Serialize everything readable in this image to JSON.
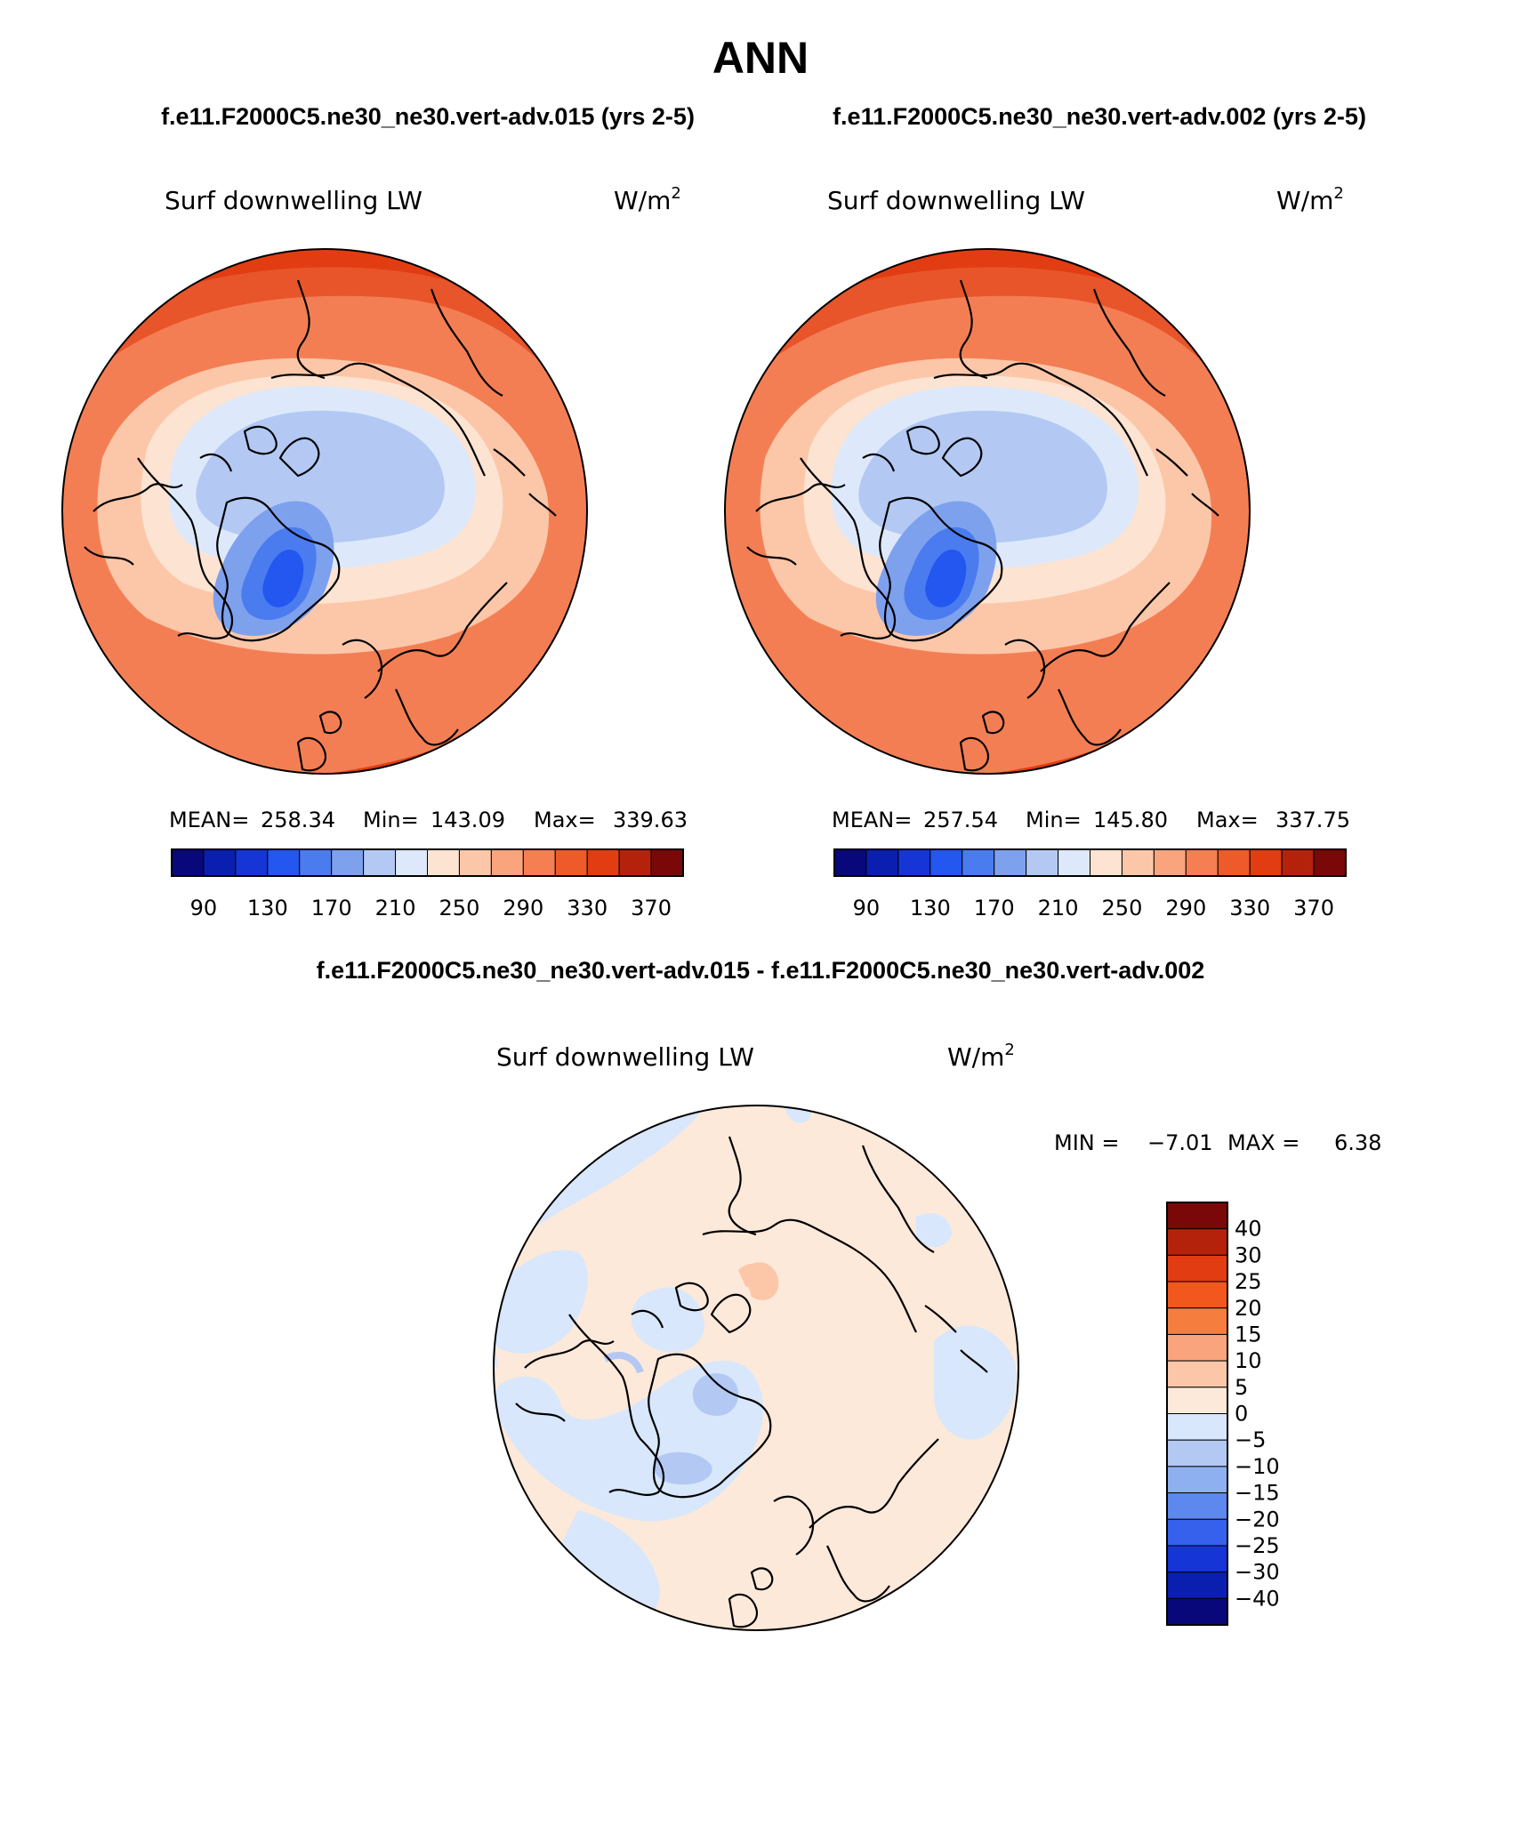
{
  "title": "ANN",
  "case_left": "f.e11.F2000C5.ne30_ne30.vert-adv.015 (yrs 2-5)",
  "case_right": "f.e11.F2000C5.ne30_ne30.vert-adv.002 (yrs 2-5)",
  "diff_title": "f.e11.F2000C5.ne30_ne30.vert-adv.015 - f.e11.F2000C5.ne30_ne30.vert-adv.002",
  "panels": [
    {
      "variable": "Surf downwelling LW",
      "units": "W/m",
      "units_sup": "2",
      "mean_label": "MEAN=",
      "mean_value": "258.34",
      "min_label": "Min=",
      "min_value": "143.09",
      "max_label": "Max=",
      "max_value": "339.63"
    },
    {
      "variable": "Surf downwelling LW",
      "units": "W/m",
      "units_sup": "2",
      "mean_label": "MEAN=",
      "mean_value": "257.54",
      "min_label": "Min=",
      "min_value": "145.80",
      "max_label": "Max=",
      "max_value": "337.75"
    }
  ],
  "diff_panel": {
    "variable": "Surf downwelling LW",
    "units": "W/m",
    "units_sup": "2",
    "min_label": "MIN =",
    "min_value": "−7.01",
    "max_label": "MAX =",
    "max_value": "6.38"
  },
  "colorbar_main": {
    "colors": [
      "#08087a",
      "#0a1fb0",
      "#1535d6",
      "#2456f0",
      "#4a7cf0",
      "#7ea1ee",
      "#b3c9f4",
      "#dde9fb",
      "#fde3d1",
      "#fcc7a8",
      "#f9a47d",
      "#f57e52",
      "#ef5a2b",
      "#e23d12",
      "#b5220c",
      "#7a0808"
    ],
    "tick_labels": [
      "90",
      "130",
      "170",
      "210",
      "250",
      "290",
      "330",
      "370"
    ]
  },
  "colorbar_diff": {
    "colors": [
      "#7a0808",
      "#b5220c",
      "#e23d12",
      "#f2571e",
      "#f57e3e",
      "#f9a47d",
      "#fcc7a8",
      "#fde9da",
      "#d8e7fb",
      "#b3c9f4",
      "#8fb0f0",
      "#5d88ee",
      "#3561ec",
      "#1535d6",
      "#0a1fb0",
      "#08087a"
    ],
    "tick_labels": [
      "40",
      "30",
      "25",
      "20",
      "15",
      "10",
      "5",
      "0",
      "−5",
      "−10",
      "−15",
      "−20",
      "−25",
      "−30",
      "−40"
    ]
  },
  "map_fields": {
    "outer_ring": "#e8552a",
    "mid_latitude": "#f47e54",
    "subpolar": "#fcc7a8",
    "polar_edge": "#fde3d1",
    "arctic_ocean": "#dde9fb",
    "arctic_core": "#b3c9f4",
    "greenland_edge": "#7ea1ee",
    "greenland_core": "#2456f0",
    "diff_positive": "#fde9da",
    "diff_negative": "#d8e7fb",
    "diff_strong_negative": "#b3c9f4",
    "diff_strong_positive": "#fcc7a8"
  }
}
